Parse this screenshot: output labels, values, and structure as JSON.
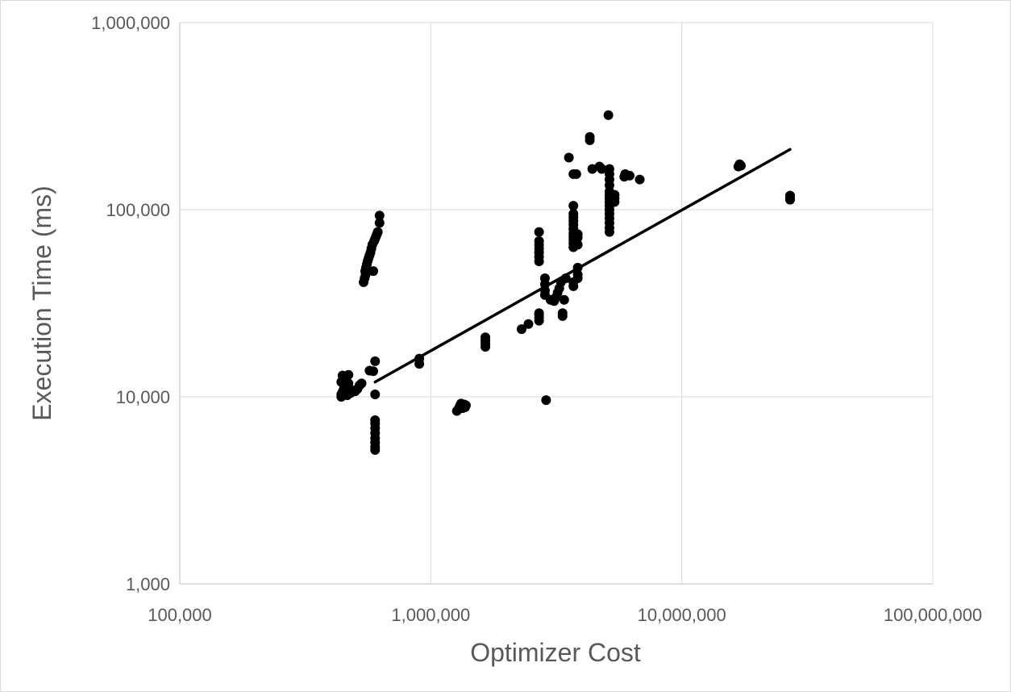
{
  "chart_data": {
    "type": "scatter",
    "title": "",
    "xlabel": "Optimizer Cost",
    "ylabel": "Execution Time (ms)",
    "x_scale": "log",
    "y_scale": "log",
    "xlim": [
      100000,
      100000000
    ],
    "ylim": [
      1000,
      1000000
    ],
    "x_ticks": [
      {
        "value": 100000,
        "label": "100,000"
      },
      {
        "value": 1000000,
        "label": "1,000,000"
      },
      {
        "value": 10000000,
        "label": "10,000,000"
      },
      {
        "value": 100000000,
        "label": "100,000,000"
      }
    ],
    "y_ticks": [
      {
        "value": 1000,
        "label": "1,000"
      },
      {
        "value": 10000,
        "label": "10,000"
      },
      {
        "value": 100000,
        "label": "100,000"
      },
      {
        "value": 1000000,
        "label": "1,000,000"
      }
    ],
    "grid": true,
    "legend": "none",
    "marker_color": "#000000",
    "trendline": {
      "type": "power",
      "x": [
        600000,
        27000000
      ],
      "y": [
        12000,
        210000
      ]
    },
    "series": [
      {
        "points": [
          [
            440000,
            10000
          ],
          [
            440000,
            10300
          ],
          [
            445000,
            10600
          ],
          [
            450000,
            11000
          ],
          [
            440000,
            12000
          ],
          [
            450000,
            12500
          ],
          [
            445000,
            13000
          ],
          [
            460000,
            12800
          ],
          [
            470000,
            13100
          ],
          [
            455000,
            11500
          ],
          [
            470000,
            11800
          ],
          [
            465000,
            10200
          ],
          [
            480000,
            10500
          ],
          [
            490000,
            10800
          ],
          [
            500000,
            10700
          ],
          [
            510000,
            11000
          ],
          [
            520000,
            11500
          ],
          [
            530000,
            11800
          ],
          [
            540000,
            41000
          ],
          [
            545000,
            43000
          ],
          [
            550000,
            45000
          ],
          [
            548000,
            47000
          ],
          [
            552000,
            49000
          ],
          [
            556000,
            51000
          ],
          [
            560000,
            53000
          ],
          [
            565000,
            55000
          ],
          [
            570000,
            57000
          ],
          [
            575000,
            59000
          ],
          [
            580000,
            62000
          ],
          [
            585000,
            65000
          ],
          [
            590000,
            47000
          ],
          [
            595000,
            68000
          ],
          [
            600000,
            70000
          ],
          [
            605000,
            72000
          ],
          [
            610000,
            74000
          ],
          [
            615000,
            76000
          ],
          [
            625000,
            85000
          ],
          [
            625000,
            93000
          ],
          [
            570000,
            13800
          ],
          [
            590000,
            13700
          ],
          [
            600000,
            15500
          ],
          [
            600000,
            10300
          ],
          [
            600000,
            7500
          ],
          [
            600000,
            7200
          ],
          [
            600000,
            6800
          ],
          [
            600000,
            6400
          ],
          [
            600000,
            6000
          ],
          [
            600000,
            5700
          ],
          [
            600000,
            5400
          ],
          [
            600000,
            5200
          ],
          [
            900000,
            15000
          ],
          [
            900000,
            16000
          ],
          [
            1270000,
            8400
          ],
          [
            1290000,
            8600
          ],
          [
            1300000,
            8800
          ],
          [
            1310000,
            9000
          ],
          [
            1320000,
            9200
          ],
          [
            1340000,
            8700
          ],
          [
            1350000,
            8900
          ],
          [
            1360000,
            9100
          ],
          [
            1370000,
            8800
          ],
          [
            1380000,
            9000
          ],
          [
            1650000,
            18500
          ],
          [
            1650000,
            19200
          ],
          [
            1650000,
            20000
          ],
          [
            1650000,
            20800
          ],
          [
            2300000,
            23000
          ],
          [
            2450000,
            24500
          ],
          [
            2700000,
            25500
          ],
          [
            2700000,
            26500
          ],
          [
            2700000,
            27500
          ],
          [
            2700000,
            28000
          ],
          [
            2700000,
            53000
          ],
          [
            2700000,
            56000
          ],
          [
            2700000,
            59000
          ],
          [
            2700000,
            62000
          ],
          [
            2700000,
            65000
          ],
          [
            2700000,
            68000
          ],
          [
            2700000,
            76000
          ],
          [
            2850000,
            35000
          ],
          [
            2850000,
            37000
          ],
          [
            2850000,
            40000
          ],
          [
            2850000,
            43000
          ],
          [
            2880000,
            9600
          ],
          [
            3000000,
            33000
          ],
          [
            3100000,
            32500
          ],
          [
            3150000,
            34000
          ],
          [
            3200000,
            36000
          ],
          [
            3250000,
            38000
          ],
          [
            3300000,
            41000
          ],
          [
            3350000,
            27000
          ],
          [
            3350000,
            28000
          ],
          [
            3400000,
            33000
          ],
          [
            3450000,
            43000
          ],
          [
            3550000,
            190000
          ],
          [
            3700000,
            39000
          ],
          [
            3700000,
            41000
          ],
          [
            3700000,
            63000
          ],
          [
            3700000,
            66000
          ],
          [
            3700000,
            69000
          ],
          [
            3700000,
            72000
          ],
          [
            3700000,
            75000
          ],
          [
            3700000,
            79000
          ],
          [
            3700000,
            83000
          ],
          [
            3700000,
            87000
          ],
          [
            3700000,
            91000
          ],
          [
            3700000,
            95000
          ],
          [
            3700000,
            105000
          ],
          [
            3700000,
            155000
          ],
          [
            3800000,
            155000
          ],
          [
            3850000,
            43000
          ],
          [
            3850000,
            45000
          ],
          [
            3850000,
            49000
          ],
          [
            3850000,
            65000
          ],
          [
            3850000,
            71000
          ],
          [
            3850000,
            74000
          ],
          [
            4300000,
            235000
          ],
          [
            4300000,
            245000
          ],
          [
            4400000,
            165000
          ],
          [
            4700000,
            170000
          ],
          [
            4800000,
            165000
          ],
          [
            5100000,
            320000
          ],
          [
            5150000,
            76000
          ],
          [
            5150000,
            80000
          ],
          [
            5150000,
            85000
          ],
          [
            5150000,
            90000
          ],
          [
            5150000,
            95000
          ],
          [
            5150000,
            100000
          ],
          [
            5150000,
            105000
          ],
          [
            5150000,
            110000
          ],
          [
            5150000,
            115000
          ],
          [
            5150000,
            120000
          ],
          [
            5150000,
            125000
          ],
          [
            5150000,
            135000
          ],
          [
            5150000,
            145000
          ],
          [
            5150000,
            155000
          ],
          [
            5150000,
            165000
          ],
          [
            5400000,
            110000
          ],
          [
            5400000,
            115000
          ],
          [
            5400000,
            120000
          ],
          [
            5900000,
            150000
          ],
          [
            5950000,
            155000
          ],
          [
            6200000,
            152000
          ],
          [
            6800000,
            145000
          ],
          [
            16800000,
            170000
          ],
          [
            17000000,
            175000
          ],
          [
            17200000,
            172000
          ],
          [
            27000000,
            113000
          ],
          [
            27000000,
            116000
          ],
          [
            27000000,
            119000
          ]
        ]
      }
    ]
  }
}
